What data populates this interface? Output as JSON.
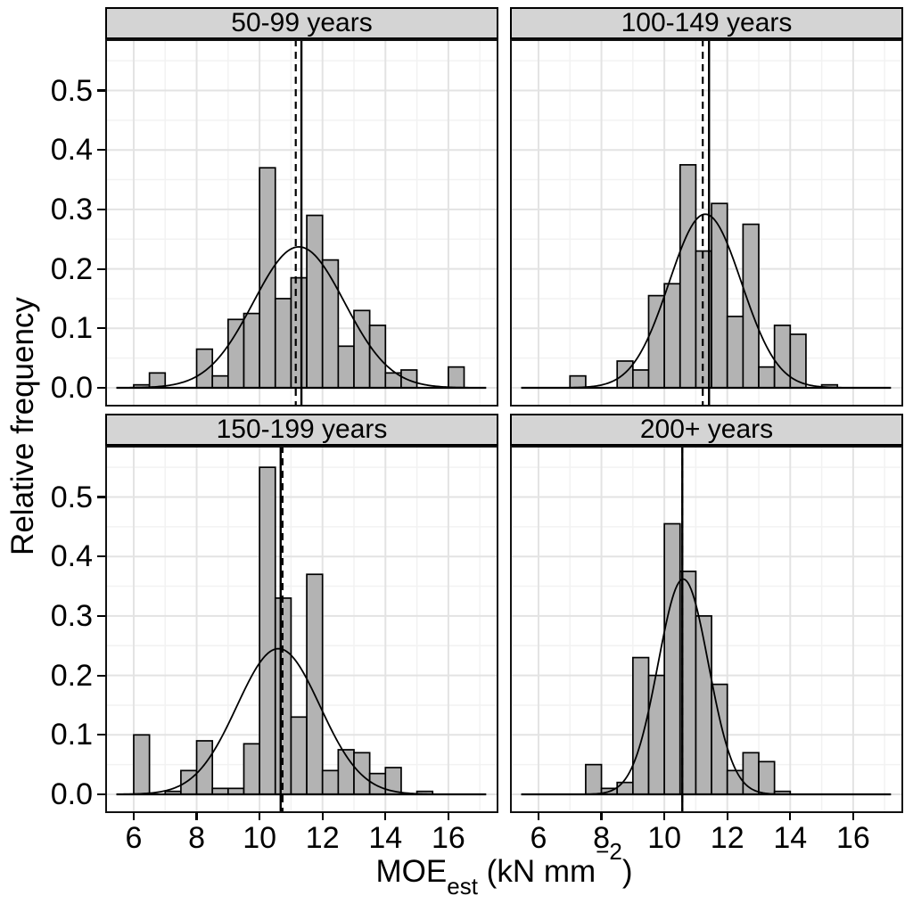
{
  "figure": {
    "y_axis_title": "Relative frequency",
    "x_axis_title": {
      "base": "MOE",
      "sub": "est",
      "mid": " (kN mm",
      "sup": "−2",
      "end": ")"
    },
    "x_tick_labels": [
      "6",
      "8",
      "10",
      "12",
      "14",
      "16"
    ],
    "x_tick_values": [
      6,
      8,
      10,
      12,
      14,
      16
    ],
    "y_tick_labels": [
      "0.0",
      "0.1",
      "0.2",
      "0.3",
      "0.4",
      "0.5"
    ],
    "y_tick_values": [
      0,
      0.1,
      0.2,
      0.3,
      0.4,
      0.5
    ],
    "colors": {
      "bar_fill": "#b3b3b3",
      "bar_stroke": "#000000",
      "strip_fill": "#d4d4d4",
      "grid_major": "#e3e3e3",
      "grid_minor": "#f2f2f2",
      "panel_border": "#111111",
      "curve": "#000000",
      "vline": "#000000",
      "background": "#ffffff",
      "text": "#000000"
    }
  },
  "chart_data": [
    {
      "type": "histogram",
      "facet_label": "50-99 years",
      "xlabel": "MOEest (kN mm-2)",
      "ylabel": "Relative frequency",
      "x_range": [
        5.1,
        17.6
      ],
      "y_range": [
        0,
        0.586
      ],
      "bin_width": 0.5,
      "bins": [
        {
          "x": 6.0,
          "h": 0.005
        },
        {
          "x": 6.5,
          "h": 0.025
        },
        {
          "x": 8.0,
          "h": 0.065
        },
        {
          "x": 8.5,
          "h": 0.02
        },
        {
          "x": 9.0,
          "h": 0.115
        },
        {
          "x": 9.5,
          "h": 0.125
        },
        {
          "x": 10.0,
          "h": 0.37
        },
        {
          "x": 10.5,
          "h": 0.15
        },
        {
          "x": 11.0,
          "h": 0.185
        },
        {
          "x": 11.5,
          "h": 0.29
        },
        {
          "x": 12.0,
          "h": 0.215
        },
        {
          "x": 12.5,
          "h": 0.07
        },
        {
          "x": 13.0,
          "h": 0.13
        },
        {
          "x": 13.5,
          "h": 0.105
        },
        {
          "x": 14.0,
          "h": 0.025
        },
        {
          "x": 14.5,
          "h": 0.03
        },
        {
          "x": 16.0,
          "h": 0.035
        }
      ],
      "normal_curve": {
        "mean": 11.25,
        "sd": 1.45,
        "peak": 0.237
      },
      "vline_solid": 11.33,
      "vline_dashed": 11.15
    },
    {
      "type": "histogram",
      "facet_label": "100-149 years",
      "xlabel": "MOEest (kN mm-2)",
      "ylabel": "Relative frequency",
      "x_range": [
        5.1,
        17.6
      ],
      "y_range": [
        0,
        0.586
      ],
      "bin_width": 0.5,
      "bins": [
        {
          "x": 7.0,
          "h": 0.02
        },
        {
          "x": 8.5,
          "h": 0.045
        },
        {
          "x": 9.0,
          "h": 0.03
        },
        {
          "x": 9.5,
          "h": 0.155
        },
        {
          "x": 10.0,
          "h": 0.175
        },
        {
          "x": 10.5,
          "h": 0.375
        },
        {
          "x": 11.0,
          "h": 0.23
        },
        {
          "x": 11.5,
          "h": 0.31
        },
        {
          "x": 12.0,
          "h": 0.12
        },
        {
          "x": 12.5,
          "h": 0.275
        },
        {
          "x": 13.0,
          "h": 0.035
        },
        {
          "x": 13.5,
          "h": 0.105
        },
        {
          "x": 14.0,
          "h": 0.09
        },
        {
          "x": 15.0,
          "h": 0.005
        }
      ],
      "normal_curve": {
        "mean": 11.3,
        "sd": 1.15,
        "peak": 0.292
      },
      "vline_solid": 11.42,
      "vline_dashed": 11.22
    },
    {
      "type": "histogram",
      "facet_label": "150-199 years",
      "xlabel": "MOEest (kN mm-2)",
      "ylabel": "Relative frequency",
      "x_range": [
        5.1,
        17.6
      ],
      "y_range": [
        0,
        0.586
      ],
      "bin_width": 0.5,
      "bins": [
        {
          "x": 6.0,
          "h": 0.1
        },
        {
          "x": 7.0,
          "h": 0.005
        },
        {
          "x": 7.5,
          "h": 0.04
        },
        {
          "x": 8.0,
          "h": 0.09
        },
        {
          "x": 8.5,
          "h": 0.01
        },
        {
          "x": 9.0,
          "h": 0.01
        },
        {
          "x": 9.5,
          "h": 0.085
        },
        {
          "x": 10.0,
          "h": 0.55
        },
        {
          "x": 10.5,
          "h": 0.33
        },
        {
          "x": 11.0,
          "h": 0.13
        },
        {
          "x": 11.5,
          "h": 0.37
        },
        {
          "x": 12.0,
          "h": 0.04
        },
        {
          "x": 12.5,
          "h": 0.075
        },
        {
          "x": 13.0,
          "h": 0.07
        },
        {
          "x": 13.5,
          "h": 0.035
        },
        {
          "x": 14.0,
          "h": 0.045
        },
        {
          "x": 15.0,
          "h": 0.005
        }
      ],
      "normal_curve": {
        "mean": 10.6,
        "sd": 1.32,
        "peak": 0.245
      },
      "vline_solid": 10.67,
      "vline_dashed": 10.73
    },
    {
      "type": "histogram",
      "facet_label": "200+ years",
      "xlabel": "MOEest (kN mm-2)",
      "ylabel": "Relative frequency",
      "x_range": [
        5.1,
        17.6
      ],
      "y_range": [
        0,
        0.586
      ],
      "bin_width": 0.5,
      "bins": [
        {
          "x": 7.5,
          "h": 0.05
        },
        {
          "x": 8.0,
          "h": 0.01
        },
        {
          "x": 8.5,
          "h": 0.02
        },
        {
          "x": 9.0,
          "h": 0.23
        },
        {
          "x": 9.5,
          "h": 0.2
        },
        {
          "x": 10.0,
          "h": 0.455
        },
        {
          "x": 10.5,
          "h": 0.375
        },
        {
          "x": 11.0,
          "h": 0.3
        },
        {
          "x": 11.5,
          "h": 0.185
        },
        {
          "x": 12.0,
          "h": 0.04
        },
        {
          "x": 12.5,
          "h": 0.07
        },
        {
          "x": 13.0,
          "h": 0.055
        },
        {
          "x": 13.5,
          "h": 0.005
        }
      ],
      "normal_curve": {
        "mean": 10.6,
        "sd": 0.8,
        "peak": 0.362
      },
      "vline_solid": 10.57,
      "vline_dashed": 10.57
    }
  ]
}
